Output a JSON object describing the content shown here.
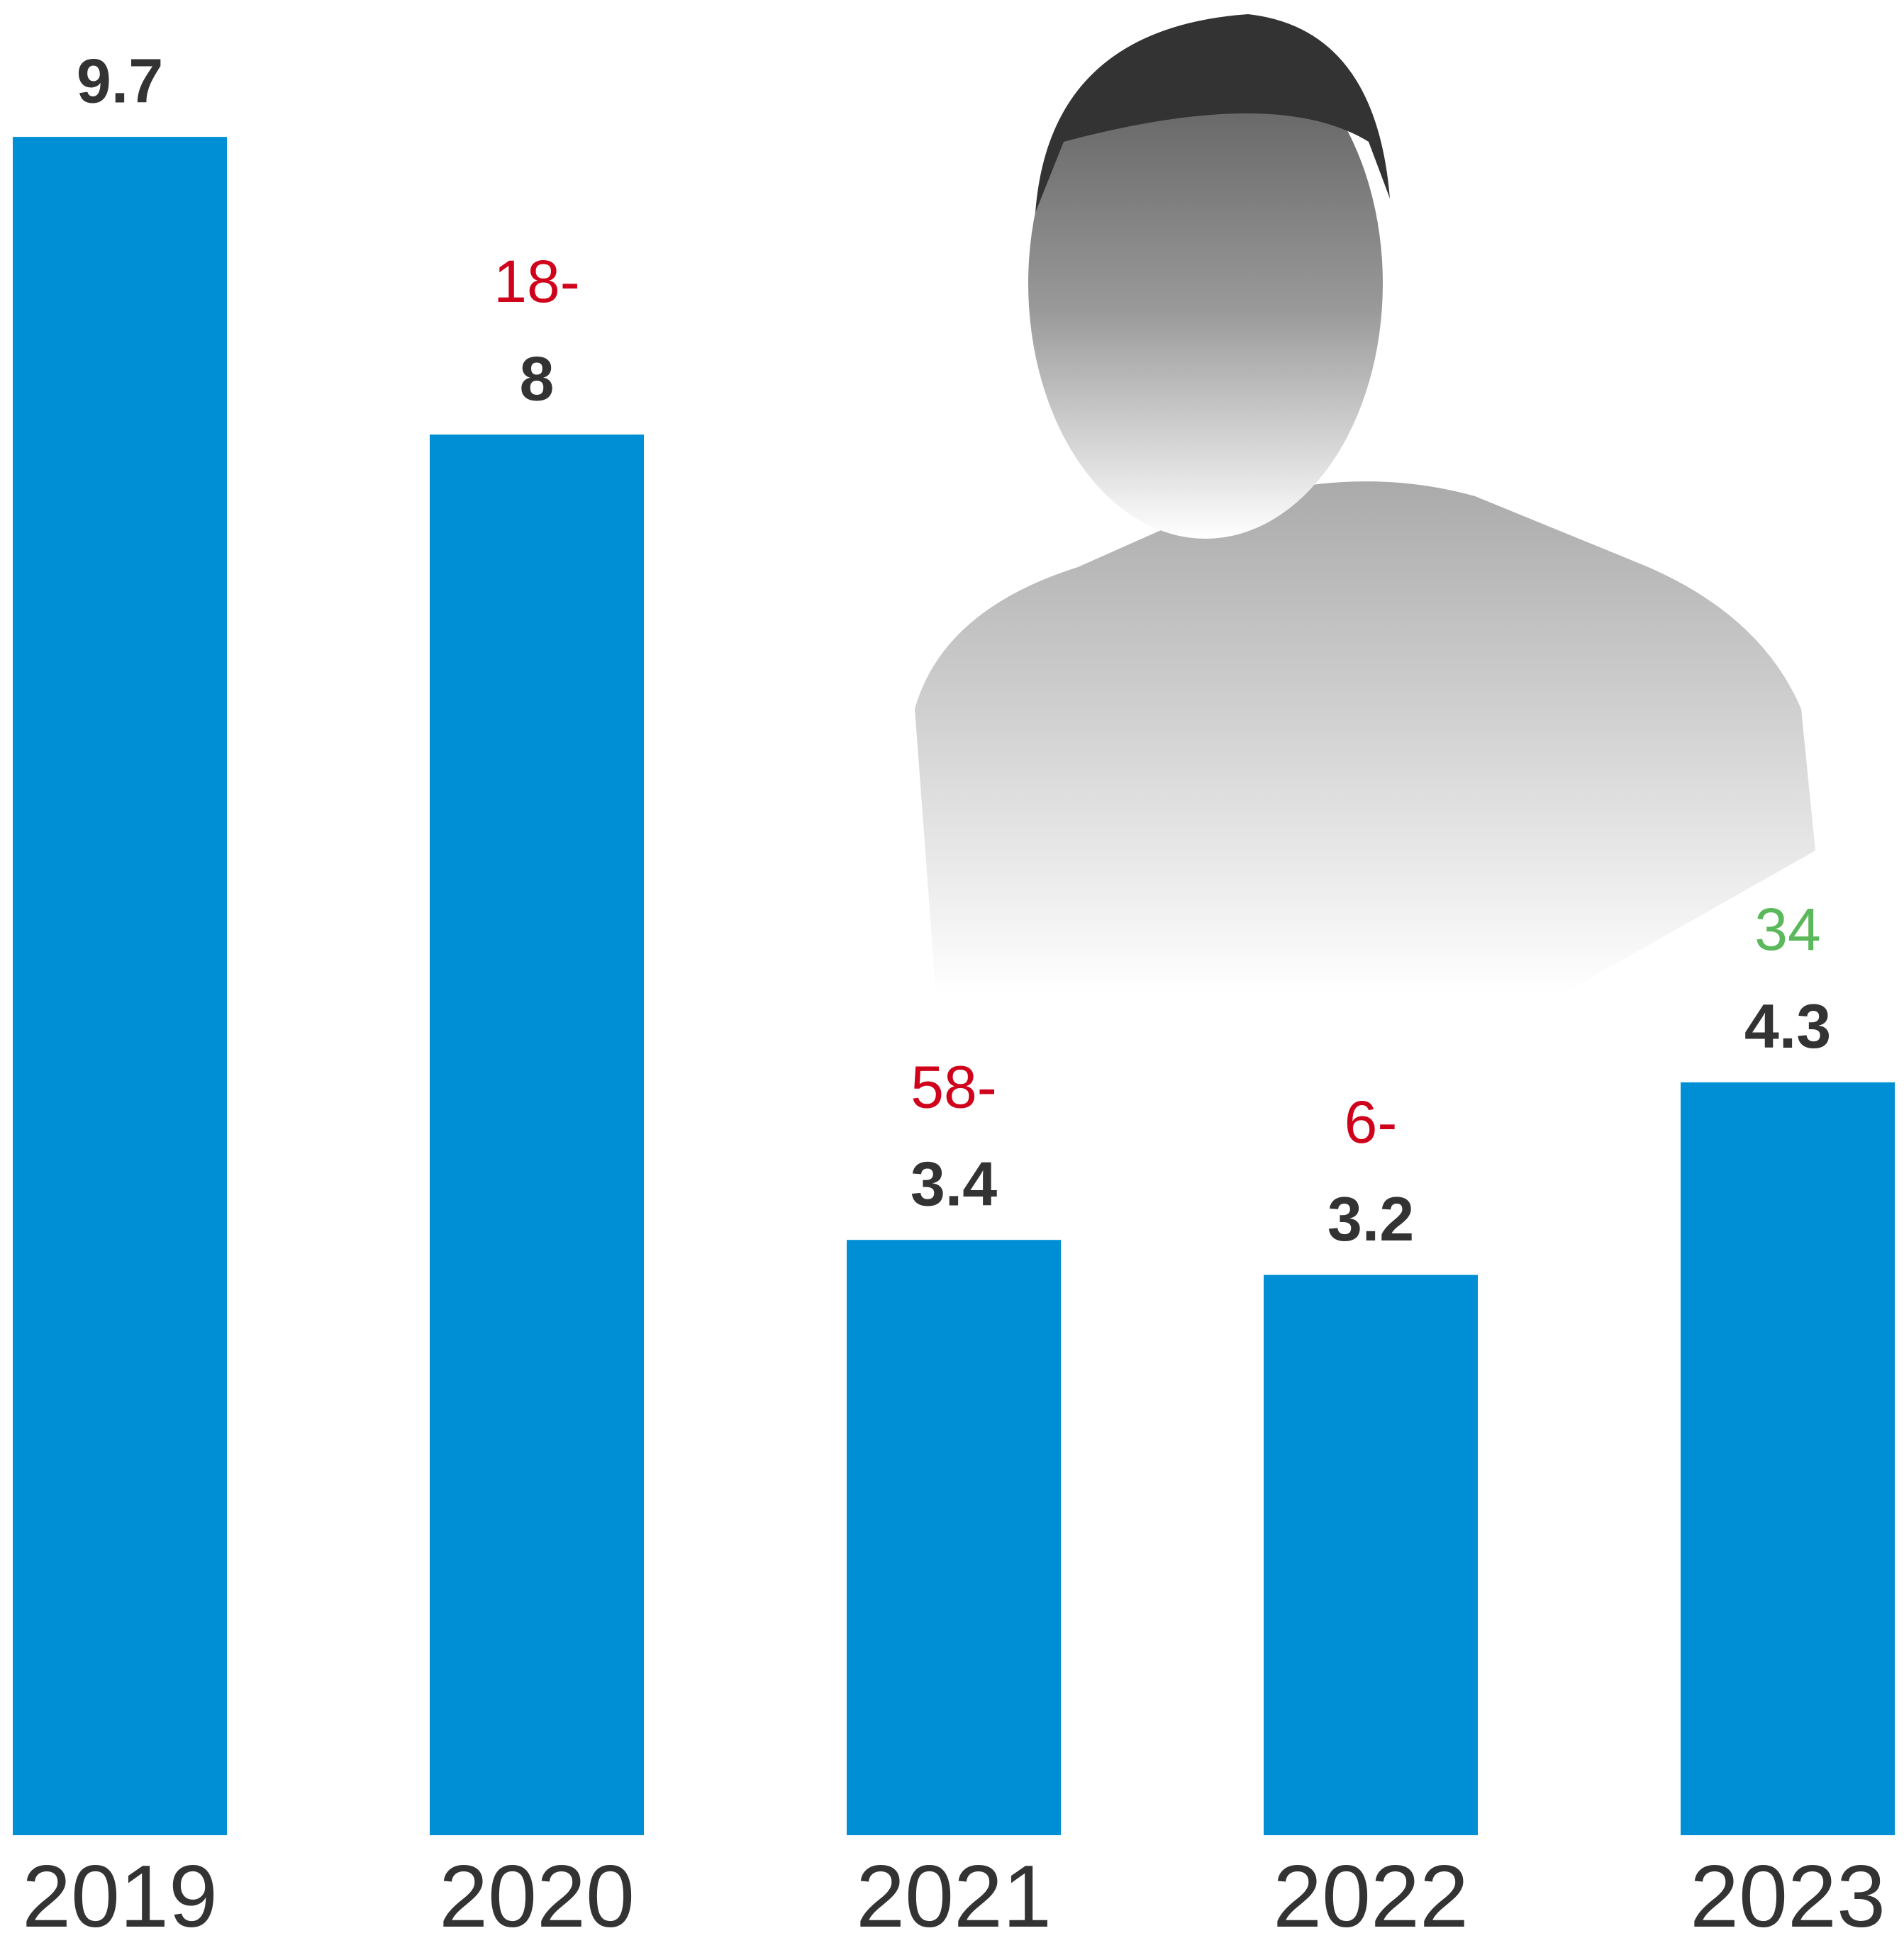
{
  "chart_data": {
    "type": "bar",
    "categories": [
      "2019",
      "2020",
      "2021",
      "2022",
      "2023"
    ],
    "values": [
      9.7,
      8,
      3.4,
      3.2,
      4.3
    ],
    "color": "#008fd5",
    "changes": [
      null,
      -18,
      -58,
      -6,
      34
    ],
    "change_labels": [
      null,
      "18-",
      "58-",
      "6-",
      "34"
    ],
    "negative_color": "#d0021b",
    "positive_color": "#5cb85c"
  }
}
